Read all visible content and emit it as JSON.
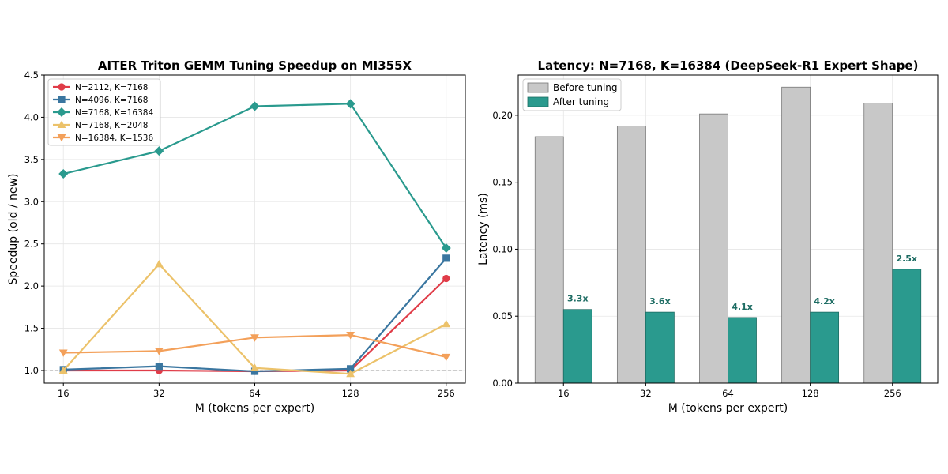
{
  "chart_data": [
    {
      "type": "line",
      "title": "AITER Triton GEMM Tuning Speedup on MI355X",
      "xlabel": "M (tokens per expert)",
      "ylabel": "Speedup (old / new)",
      "x": [
        16,
        32,
        64,
        128,
        256
      ],
      "x_scale": "log2",
      "ylim": [
        0.85,
        4.5
      ],
      "yticks": [
        1.0,
        1.5,
        2.0,
        2.5,
        3.0,
        3.5,
        4.0,
        4.5
      ],
      "grid": true,
      "legend_position": "top-left",
      "reference_line": 1.0,
      "series": [
        {
          "name": "N=2112, K=7168",
          "color": "#e03c48",
          "marker": "circle",
          "values": [
            1.0,
            1.0,
            0.99,
            1.0,
            2.09
          ]
        },
        {
          "name": "N=4096, K=7168",
          "color": "#3a76a0",
          "marker": "square",
          "values": [
            1.01,
            1.05,
            0.99,
            1.02,
            2.33
          ]
        },
        {
          "name": "N=7168, K=16384",
          "color": "#2a9a8e",
          "marker": "diamond",
          "values": [
            3.33,
            3.6,
            4.13,
            4.16,
            2.45
          ]
        },
        {
          "name": "N=7168, K=2048",
          "color": "#ecc26a",
          "marker": "triangle-up",
          "values": [
            1.0,
            2.26,
            1.03,
            0.96,
            1.55
          ]
        },
        {
          "name": "N=16384, K=1536",
          "color": "#f3a05a",
          "marker": "triangle-down",
          "values": [
            1.21,
            1.23,
            1.39,
            1.42,
            1.16
          ]
        }
      ]
    },
    {
      "type": "bar",
      "title": "Latency: N=7168, K=16384 (DeepSeek-R1 Expert Shape)",
      "xlabel": "M (tokens per expert)",
      "ylabel": "Latency (ms)",
      "categories": [
        "16",
        "32",
        "64",
        "128",
        "256"
      ],
      "ylim": [
        0,
        0.23
      ],
      "yticks": [
        0.0,
        0.05,
        0.1,
        0.15,
        0.2
      ],
      "grid": true,
      "legend_position": "top-left",
      "series": [
        {
          "name": "Before tuning",
          "color": "#c8c8c8",
          "values": [
            0.184,
            0.192,
            0.201,
            0.221,
            0.209
          ]
        },
        {
          "name": "After tuning",
          "color": "#2a9a8e",
          "values": [
            0.055,
            0.053,
            0.049,
            0.053,
            0.085
          ]
        }
      ],
      "annotations": [
        "3.3x",
        "3.6x",
        "4.1x",
        "4.2x",
        "2.5x"
      ],
      "annotation_color": "#1d6c63"
    }
  ]
}
